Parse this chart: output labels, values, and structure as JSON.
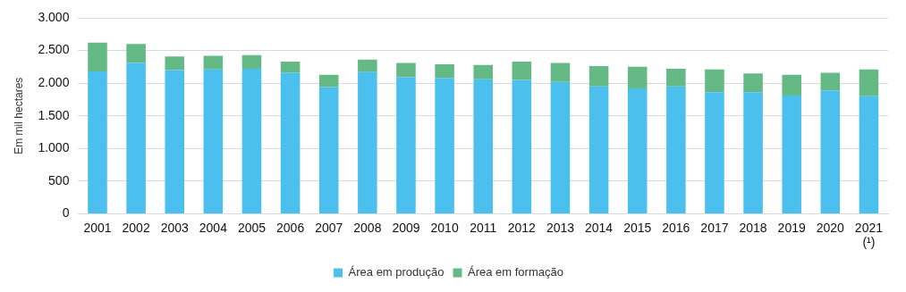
{
  "chart_data": {
    "type": "bar",
    "stacked": true,
    "ylabel": "Em mil hectares",
    "categories": [
      "2001",
      "2002",
      "2003",
      "2004",
      "2005",
      "2006",
      "2007",
      "2008",
      "2009",
      "2010",
      "2011",
      "2012",
      "2013",
      "2014",
      "2015",
      "2016",
      "2017",
      "2018",
      "2019",
      "2020",
      "2021\n(¹)"
    ],
    "series": [
      {
        "name": "Área em produção",
        "color": "#4bc0ef",
        "values": [
          2180,
          2310,
          2200,
          2210,
          2220,
          2160,
          1940,
          2170,
          2090,
          2080,
          2060,
          2050,
          2020,
          1950,
          1920,
          1950,
          1860,
          1860,
          1810,
          1890,
          1800
        ]
      },
      {
        "name": "Área em formação",
        "color": "#65b985",
        "values": [
          440,
          290,
          210,
          210,
          210,
          170,
          190,
          190,
          220,
          210,
          220,
          280,
          290,
          310,
          330,
          270,
          350,
          290,
          320,
          270,
          410
        ]
      }
    ],
    "ylim": [
      0,
      3000
    ],
    "yticks": [
      {
        "value": 0,
        "label": "0"
      },
      {
        "value": 500,
        "label": "500"
      },
      {
        "value": 1000,
        "label": "1.000"
      },
      {
        "value": 1500,
        "label": "1.500"
      },
      {
        "value": 2000,
        "label": "2.000"
      },
      {
        "value": 2500,
        "label": "2.500"
      },
      {
        "value": 3000,
        "label": "3.000"
      }
    ],
    "grid": "y",
    "legend": "bottom"
  }
}
